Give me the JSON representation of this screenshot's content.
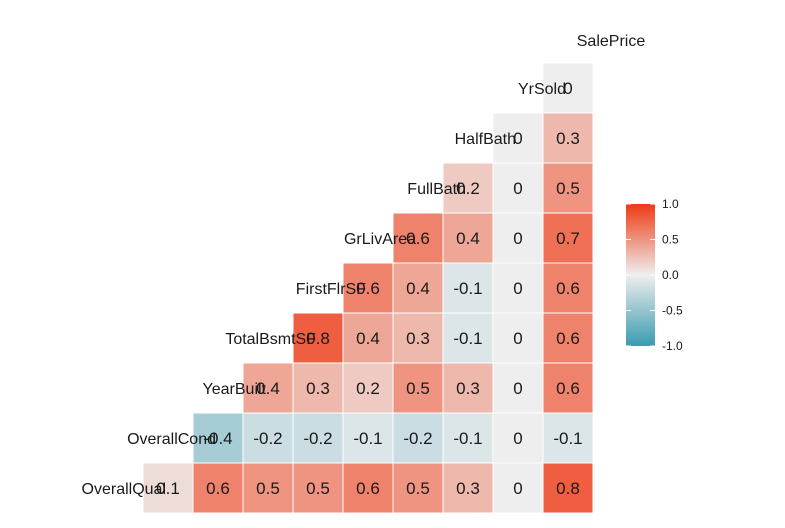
{
  "chart_data": {
    "type": "heatmap",
    "layout": "lower-triangle",
    "variables": [
      "OverallQual",
      "OverallCond",
      "YearBuilt",
      "TotalBsmtSF",
      "FirstFlrSF",
      "GrLivArea",
      "FullBath",
      "HalfBath",
      "YrSold",
      "SalePrice"
    ],
    "correlations": [
      [
        0.1
      ],
      [
        -0.4,
        -0.2,
        -0.2,
        -0.1,
        -0.2,
        -0.1,
        0,
        -0.1
      ],
      [
        0.4,
        0.3,
        0.2,
        0.5,
        0.3,
        0,
        0.6
      ],
      [
        0.8,
        0.4,
        0.3,
        -0.1,
        0,
        0.6
      ],
      [
        0.6,
        0.4,
        -0.1,
        0,
        0.6
      ],
      [
        0.6,
        0.4,
        0,
        0.7
      ],
      [
        0.2,
        0,
        0.5
      ],
      [
        0,
        0.3
      ],
      [
        0
      ]
    ],
    "bottom_row": {
      "first_value": "0.1",
      "values": [
        0.6,
        0.5,
        0.5,
        0.6,
        0.5,
        0.3,
        0,
        0.8
      ]
    },
    "color_scale": {
      "low": "#3a9bb0",
      "mid": "#eeeeee",
      "high": "#ef3a14",
      "limits": [
        -1,
        1
      ]
    },
    "legend": {
      "ticks": [
        "1.0",
        "0.5",
        "0.0",
        "-0.5",
        "-1.0"
      ],
      "position": "right"
    }
  }
}
